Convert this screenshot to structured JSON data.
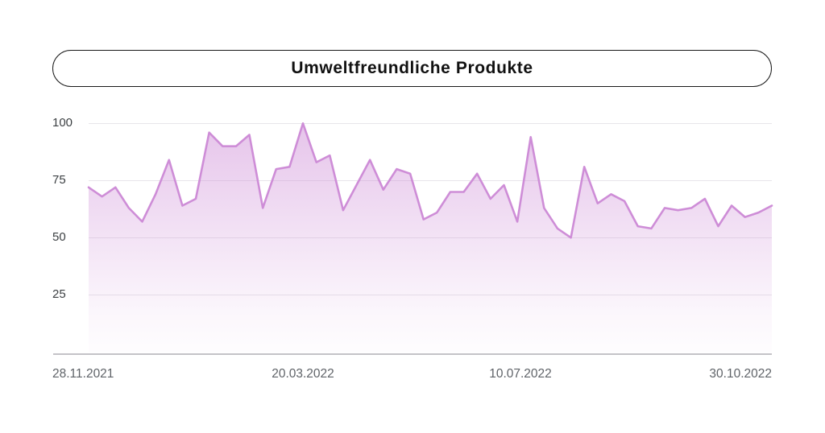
{
  "title": "Umweltfreundliche Produkte",
  "colors": {
    "line": "#ce8dd7",
    "fill_base_rgb": "205,138,214",
    "gridline": "#e7e5ea",
    "axis_line": "#c4c3c7",
    "y_label": "#3c4043",
    "x_label": "#5f6368",
    "title_text": "#111111",
    "pill_border": "#1a1a1a"
  },
  "chart_data": {
    "type": "area",
    "title": "Umweltfreundliche Produkte",
    "x_unit": "week",
    "x_tick_labels": [
      "28.11.2021",
      "20.03.2022",
      "10.07.2022",
      "30.10.2022"
    ],
    "x_tick_indices": [
      0,
      16,
      32,
      48
    ],
    "y_ticks": [
      100,
      75,
      50,
      25
    ],
    "ylim": [
      0,
      100
    ],
    "grid": true,
    "legend": false,
    "values": [
      72,
      68,
      72,
      63,
      57,
      69,
      84,
      64,
      67,
      96,
      90,
      90,
      95,
      63,
      80,
      81,
      100,
      83,
      86,
      62,
      73,
      84,
      71,
      80,
      78,
      58,
      61,
      70,
      70,
      78,
      67,
      73,
      57,
      94,
      63,
      54,
      50,
      81,
      65,
      69,
      66,
      55,
      54,
      63,
      62,
      63,
      67,
      55,
      64,
      59,
      61,
      64
    ]
  }
}
